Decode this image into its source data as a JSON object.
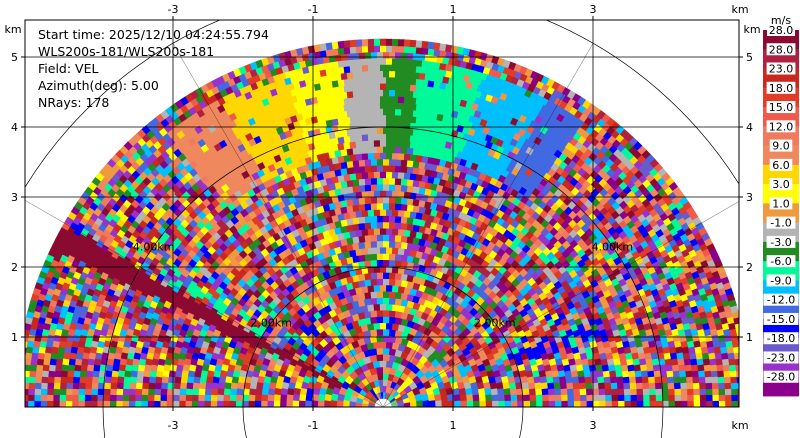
{
  "chart_data": {
    "type": "heatmap",
    "subtype": "polar-ppi",
    "info": {
      "start_time": "Start time: 2025/12/10 04:24:55.794",
      "site": "WLS200s-181/WLS200s-181",
      "field": "Field: VEL",
      "azimuth": "Azimuth(deg): 5.00",
      "nrays": "NRays: 178"
    },
    "x_axis": {
      "unit": "km",
      "ticks": [
        -3,
        -1,
        1,
        3
      ],
      "range": [
        -5.0,
        5.0
      ]
    },
    "y_axis": {
      "unit": "km",
      "ticks": [
        1,
        2,
        3,
        4,
        5
      ],
      "range": [
        0,
        5.7
      ]
    },
    "range_rings": {
      "labels": [
        "2.00km",
        "4.00km"
      ],
      "radii_km": [
        2,
        4,
        6
      ]
    },
    "max_range_km": 5.2,
    "azimuth_lines_deg": [
      30,
      60,
      120,
      150
    ],
    "colorbar": {
      "unit": "m/s",
      "colors": [
        "#8b0a32",
        "#b02040",
        "#c8281e",
        "#e03c28",
        "#f05a4a",
        "#f07a5e",
        "#f0885e",
        "#ffd700",
        "#ffff00",
        "#f09a40",
        "#b4b4b4",
        "#228b22",
        "#00fa9a",
        "#00bfff",
        "#4169e1",
        "#0000ff",
        "#6a5acd",
        "#9932cc",
        "#8b008b"
      ],
      "labels": [
        "28.0",
        "23.0",
        "18.0",
        "15.0",
        "12.0",
        "9.0",
        "6.0",
        "3.0",
        "1.0",
        "-1.0",
        "-3.0",
        "-6.0",
        "-9.0",
        "-12.0",
        "-15.0",
        "-18.0",
        "-23.0",
        "-28.0"
      ]
    }
  }
}
